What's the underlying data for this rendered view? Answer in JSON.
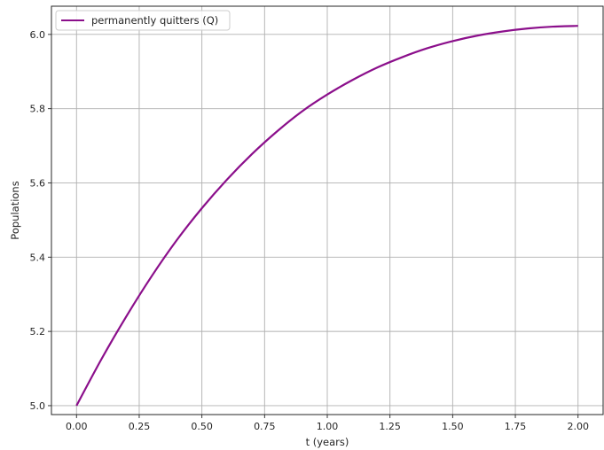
{
  "chart_data": {
    "type": "line",
    "title": "",
    "xlabel": "t (years)",
    "ylabel": "Populations",
    "xlim": [
      -0.1,
      2.1
    ],
    "ylim": [
      4.976,
      6.076
    ],
    "xticks": [
      0.0,
      0.25,
      0.5,
      0.75,
      1.0,
      1.25,
      1.5,
      1.75,
      2.0
    ],
    "xtick_labels": [
      "0.00",
      "0.25",
      "0.50",
      "0.75",
      "1.00",
      "1.25",
      "1.50",
      "1.75",
      "2.00"
    ],
    "yticks": [
      5.0,
      5.2,
      5.4,
      5.6,
      5.8,
      6.0
    ],
    "ytick_labels": [
      "5.0",
      "5.2",
      "5.4",
      "5.6",
      "5.8",
      "6.0"
    ],
    "grid": true,
    "legend_position": "top-left",
    "series": [
      {
        "name": "permanently quitters (Q)",
        "color": "#8b0f8b",
        "x": [
          0.0,
          0.1,
          0.2,
          0.3,
          0.4,
          0.5,
          0.6,
          0.7,
          0.8,
          0.9,
          1.0,
          1.1,
          1.2,
          1.3,
          1.4,
          1.5,
          1.6,
          1.7,
          1.8,
          1.9,
          2.0
        ],
        "y": [
          5.0,
          5.126,
          5.242,
          5.349,
          5.446,
          5.532,
          5.609,
          5.678,
          5.739,
          5.793,
          5.838,
          5.877,
          5.911,
          5.939,
          5.963,
          5.982,
          5.997,
          6.008,
          6.016,
          6.021,
          6.023
        ]
      }
    ]
  }
}
